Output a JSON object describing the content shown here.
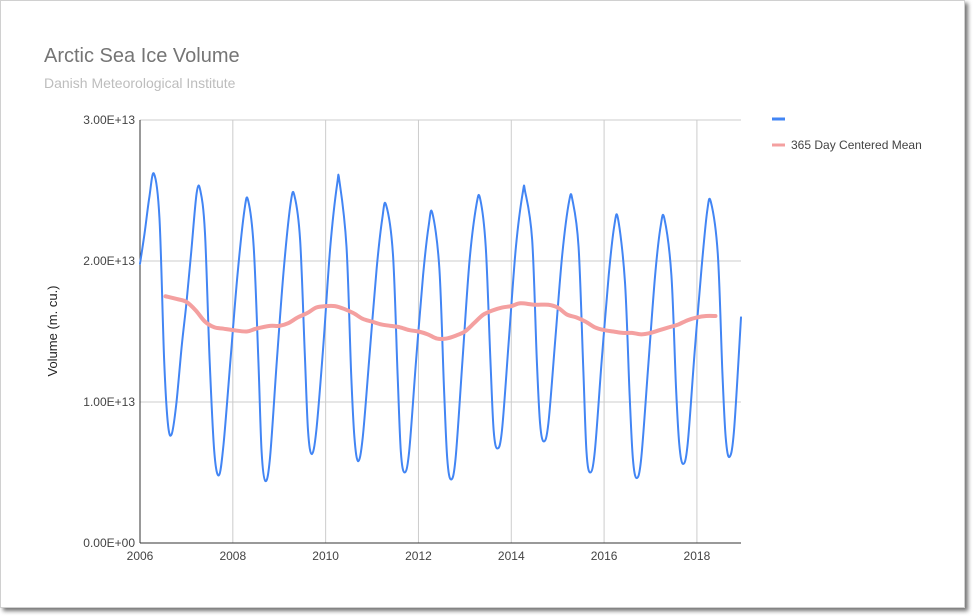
{
  "title": "Arctic Sea Ice Volume",
  "subtitle": "Danish Meteorological Institute",
  "chart_data": {
    "type": "line",
    "title": "Arctic Sea Ice Volume",
    "subtitle": "Danish Meteorological Institute",
    "xlabel": "",
    "ylabel": "Volume (m. cu.)",
    "xlim": [
      2006,
      2018.95
    ],
    "ylim": [
      0,
      30000000000000
    ],
    "x_ticks": [
      "2006",
      "2008",
      "2010",
      "2012",
      "2014",
      "2016",
      "2018"
    ],
    "y_ticks": [
      "0.00E+00",
      "1.00E+13",
      "2.00E+13",
      "3.00E+13"
    ],
    "grid": true,
    "legend_position": "right",
    "series": [
      {
        "name": "",
        "color": "#4285f4",
        "points": [
          [
            2006.0,
            19.8
          ],
          [
            2006.1,
            22.0
          ],
          [
            2006.2,
            24.5
          ],
          [
            2006.3,
            26.2
          ],
          [
            2006.42,
            23.0
          ],
          [
            2006.52,
            13.0
          ],
          [
            2006.6,
            8.5
          ],
          [
            2006.68,
            7.7
          ],
          [
            2006.78,
            9.8
          ],
          [
            2006.9,
            14.0
          ],
          [
            2007.0,
            17.0
          ],
          [
            2007.1,
            20.5
          ],
          [
            2007.22,
            24.8
          ],
          [
            2007.3,
            25.0
          ],
          [
            2007.4,
            22.0
          ],
          [
            2007.5,
            13.0
          ],
          [
            2007.6,
            6.5
          ],
          [
            2007.7,
            4.8
          ],
          [
            2007.8,
            7.0
          ],
          [
            2007.95,
            13.0
          ],
          [
            2008.1,
            19.0
          ],
          [
            2008.25,
            23.6
          ],
          [
            2008.33,
            24.3
          ],
          [
            2008.45,
            21.0
          ],
          [
            2008.55,
            13.0
          ],
          [
            2008.62,
            6.5
          ],
          [
            2008.7,
            4.4
          ],
          [
            2008.8,
            6.0
          ],
          [
            2008.95,
            13.0
          ],
          [
            2009.1,
            19.5
          ],
          [
            2009.25,
            24.2
          ],
          [
            2009.33,
            24.6
          ],
          [
            2009.45,
            21.5
          ],
          [
            2009.55,
            13.5
          ],
          [
            2009.62,
            8.0
          ],
          [
            2009.7,
            6.3
          ],
          [
            2009.8,
            8.0
          ],
          [
            2009.95,
            14.0
          ],
          [
            2010.1,
            21.0
          ],
          [
            2010.25,
            25.5
          ],
          [
            2010.3,
            25.6
          ],
          [
            2010.45,
            21.0
          ],
          [
            2010.55,
            12.0
          ],
          [
            2010.62,
            7.5
          ],
          [
            2010.7,
            5.8
          ],
          [
            2010.8,
            7.5
          ],
          [
            2010.95,
            13.5
          ],
          [
            2011.1,
            19.5
          ],
          [
            2011.22,
            23.0
          ],
          [
            2011.3,
            24.0
          ],
          [
            2011.45,
            20.5
          ],
          [
            2011.55,
            12.0
          ],
          [
            2011.62,
            6.5
          ],
          [
            2011.7,
            5.0
          ],
          [
            2011.8,
            6.5
          ],
          [
            2011.95,
            13.0
          ],
          [
            2012.1,
            19.0
          ],
          [
            2012.22,
            22.5
          ],
          [
            2012.3,
            23.4
          ],
          [
            2012.45,
            19.5
          ],
          [
            2012.55,
            11.0
          ],
          [
            2012.62,
            6.0
          ],
          [
            2012.7,
            4.5
          ],
          [
            2012.8,
            6.0
          ],
          [
            2012.95,
            13.0
          ],
          [
            2013.1,
            20.0
          ],
          [
            2013.25,
            24.0
          ],
          [
            2013.33,
            24.4
          ],
          [
            2013.45,
            21.0
          ],
          [
            2013.55,
            13.0
          ],
          [
            2013.62,
            8.0
          ],
          [
            2013.7,
            6.7
          ],
          [
            2013.8,
            8.0
          ],
          [
            2013.95,
            14.5
          ],
          [
            2014.1,
            21.0
          ],
          [
            2014.25,
            24.9
          ],
          [
            2014.3,
            24.9
          ],
          [
            2014.45,
            21.5
          ],
          [
            2014.55,
            13.0
          ],
          [
            2014.62,
            8.5
          ],
          [
            2014.7,
            7.2
          ],
          [
            2014.8,
            8.5
          ],
          [
            2014.95,
            14.5
          ],
          [
            2015.1,
            20.5
          ],
          [
            2015.25,
            24.3
          ],
          [
            2015.32,
            24.3
          ],
          [
            2015.45,
            21.0
          ],
          [
            2015.55,
            12.5
          ],
          [
            2015.62,
            6.5
          ],
          [
            2015.7,
            5.0
          ],
          [
            2015.8,
            6.5
          ],
          [
            2015.95,
            13.0
          ],
          [
            2016.1,
            19.0
          ],
          [
            2016.22,
            22.5
          ],
          [
            2016.3,
            23.0
          ],
          [
            2016.45,
            18.5
          ],
          [
            2016.55,
            10.5
          ],
          [
            2016.62,
            6.0
          ],
          [
            2016.7,
            4.6
          ],
          [
            2016.8,
            6.0
          ],
          [
            2016.95,
            12.5
          ],
          [
            2017.1,
            19.0
          ],
          [
            2017.22,
            22.5
          ],
          [
            2017.3,
            23.0
          ],
          [
            2017.45,
            19.0
          ],
          [
            2017.55,
            11.0
          ],
          [
            2017.62,
            7.0
          ],
          [
            2017.7,
            5.6
          ],
          [
            2017.8,
            7.0
          ],
          [
            2017.95,
            13.5
          ],
          [
            2018.1,
            19.5
          ],
          [
            2018.22,
            23.5
          ],
          [
            2018.3,
            24.2
          ],
          [
            2018.45,
            20.5
          ],
          [
            2018.55,
            12.0
          ],
          [
            2018.62,
            7.5
          ],
          [
            2018.7,
            6.1
          ],
          [
            2018.8,
            8.0
          ],
          [
            2018.95,
            16.0
          ]
        ]
      },
      {
        "name": "365 Day Centered Mean",
        "color": "#f4a0a0",
        "points": [
          [
            2006.55,
            17.5
          ],
          [
            2006.8,
            17.3
          ],
          [
            2007.0,
            17.1
          ],
          [
            2007.2,
            16.5
          ],
          [
            2007.4,
            15.7
          ],
          [
            2007.6,
            15.3
          ],
          [
            2007.8,
            15.2
          ],
          [
            2008.0,
            15.1
          ],
          [
            2008.3,
            15.0
          ],
          [
            2008.5,
            15.2
          ],
          [
            2008.8,
            15.4
          ],
          [
            2009.0,
            15.4
          ],
          [
            2009.2,
            15.6
          ],
          [
            2009.4,
            16.0
          ],
          [
            2009.6,
            16.3
          ],
          [
            2009.8,
            16.7
          ],
          [
            2010.0,
            16.8
          ],
          [
            2010.2,
            16.8
          ],
          [
            2010.4,
            16.6
          ],
          [
            2010.6,
            16.3
          ],
          [
            2010.8,
            15.9
          ],
          [
            2011.0,
            15.7
          ],
          [
            2011.2,
            15.5
          ],
          [
            2011.4,
            15.4
          ],
          [
            2011.6,
            15.3
          ],
          [
            2011.8,
            15.1
          ],
          [
            2012.0,
            15.0
          ],
          [
            2012.2,
            14.8
          ],
          [
            2012.4,
            14.5
          ],
          [
            2012.6,
            14.5
          ],
          [
            2012.8,
            14.7
          ],
          [
            2013.0,
            15.0
          ],
          [
            2013.2,
            15.6
          ],
          [
            2013.4,
            16.2
          ],
          [
            2013.6,
            16.5
          ],
          [
            2013.8,
            16.7
          ],
          [
            2014.0,
            16.8
          ],
          [
            2014.2,
            17.0
          ],
          [
            2014.5,
            16.9
          ],
          [
            2014.8,
            16.9
          ],
          [
            2015.0,
            16.7
          ],
          [
            2015.2,
            16.2
          ],
          [
            2015.4,
            16.0
          ],
          [
            2015.6,
            15.7
          ],
          [
            2015.8,
            15.3
          ],
          [
            2016.0,
            15.1
          ],
          [
            2016.2,
            15.0
          ],
          [
            2016.4,
            14.9
          ],
          [
            2016.6,
            14.9
          ],
          [
            2016.8,
            14.8
          ],
          [
            2017.0,
            14.9
          ],
          [
            2017.2,
            15.1
          ],
          [
            2017.4,
            15.3
          ],
          [
            2017.6,
            15.5
          ],
          [
            2017.8,
            15.8
          ],
          [
            2018.0,
            16.0
          ],
          [
            2018.2,
            16.1
          ],
          [
            2018.4,
            16.1
          ]
        ]
      }
    ]
  }
}
